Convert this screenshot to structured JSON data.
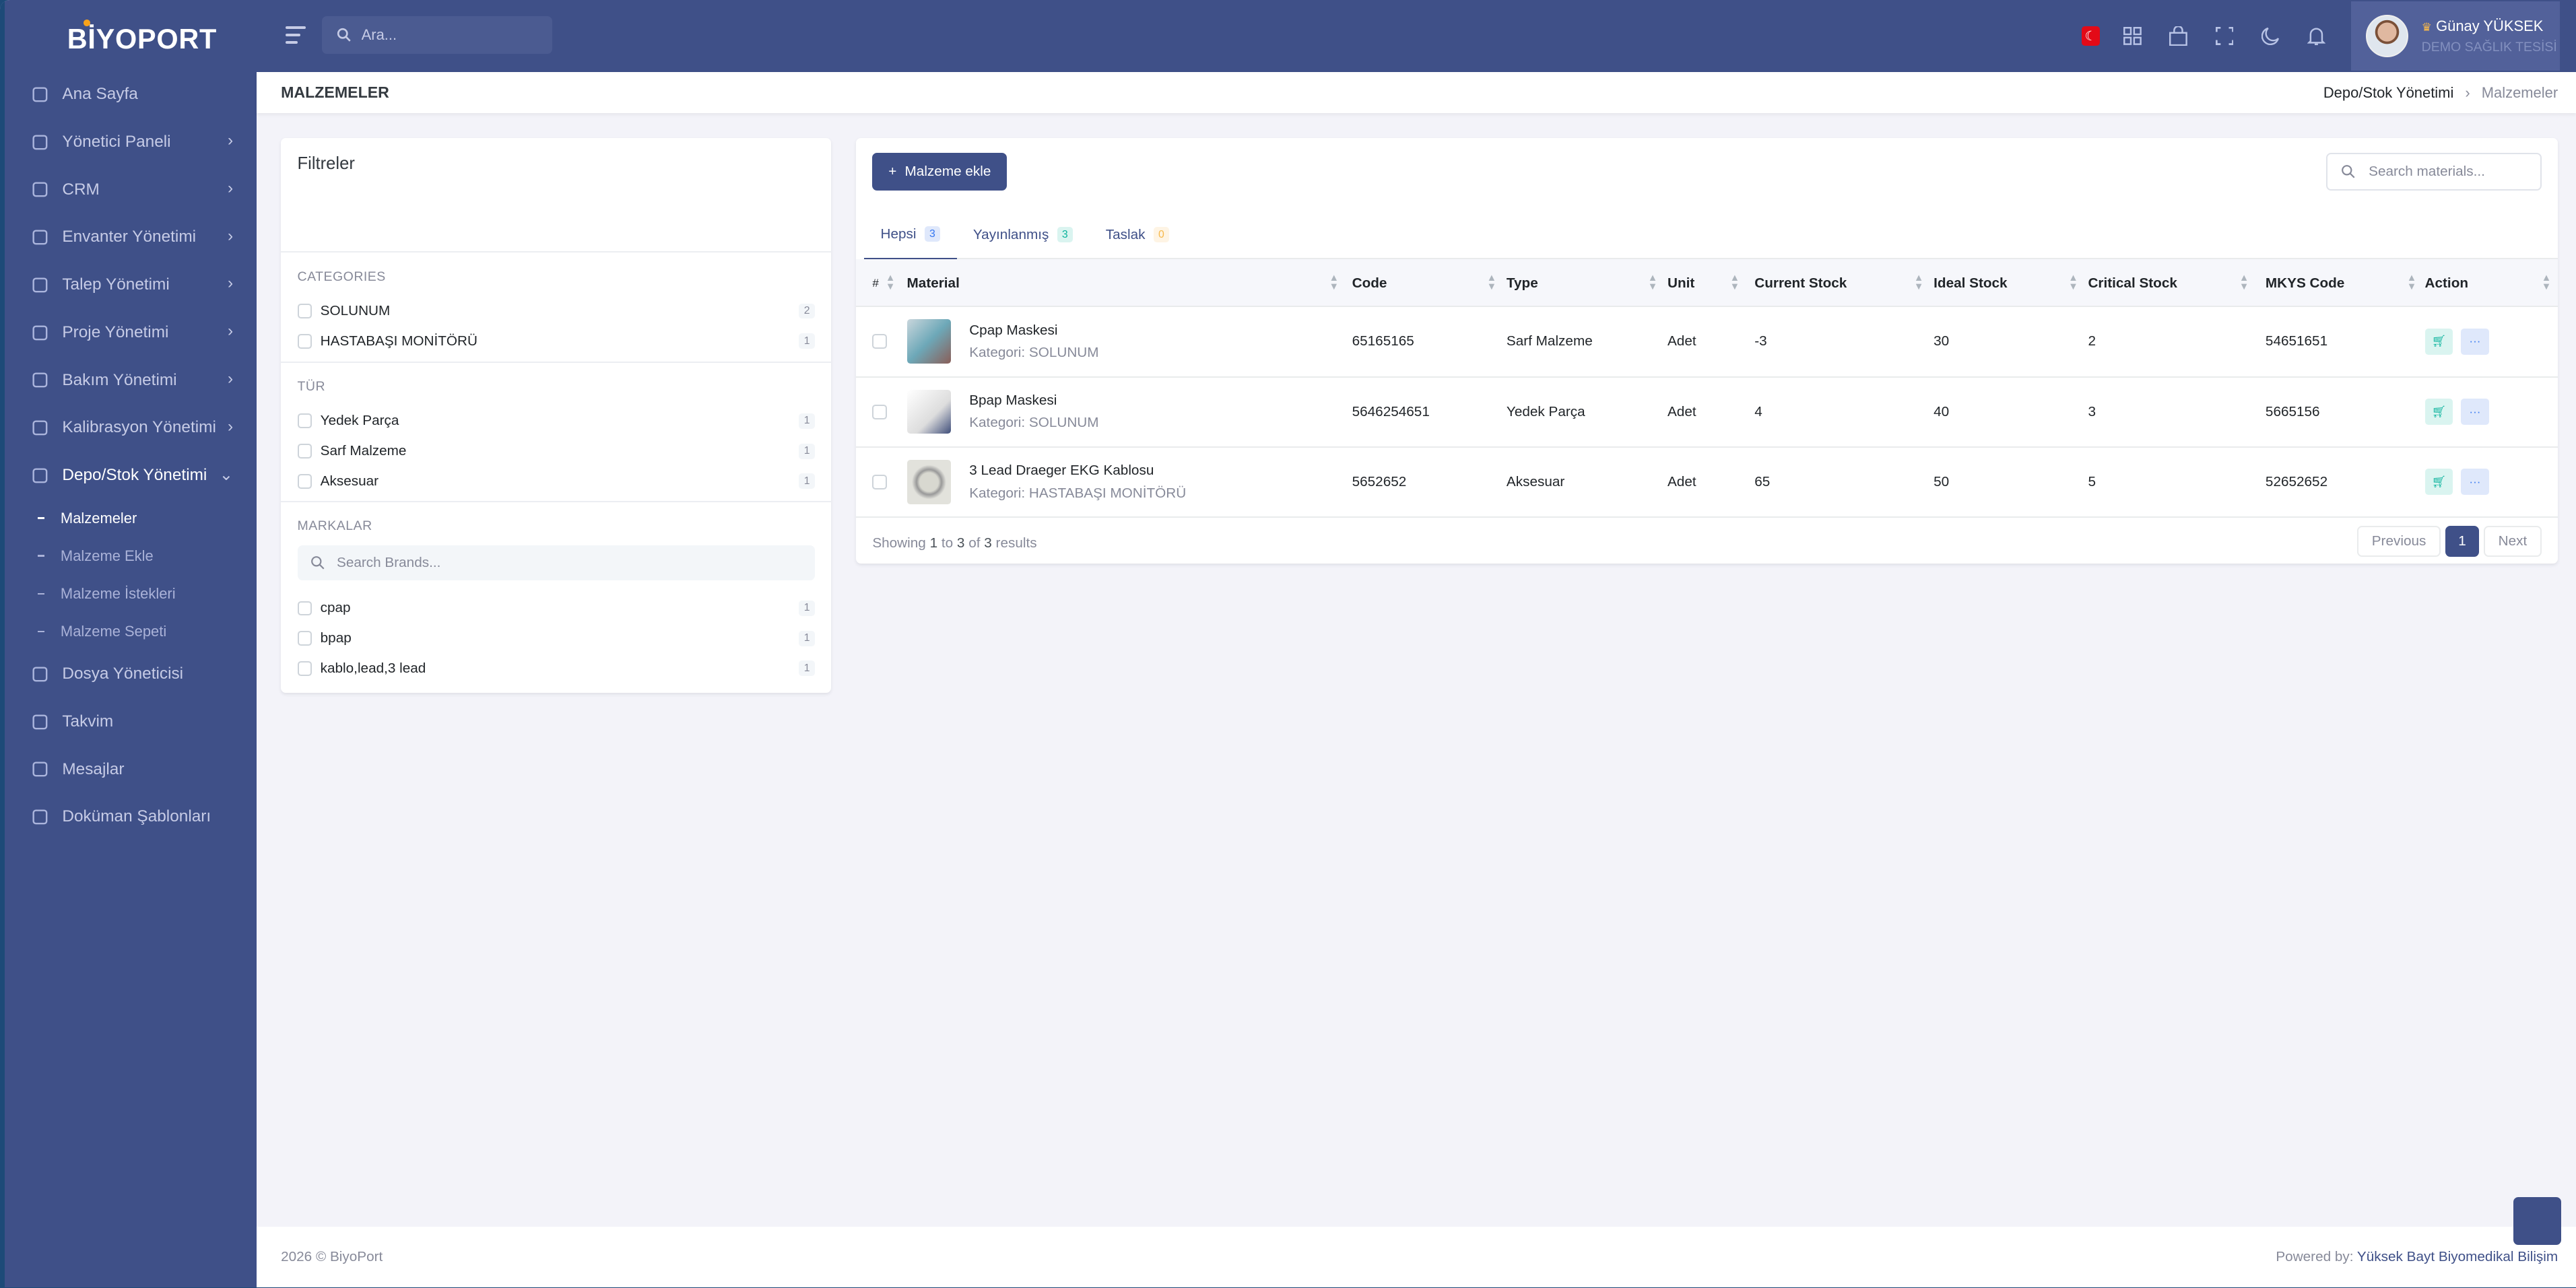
{
  "app": {
    "logo": "BİYOPORT"
  },
  "topbar": {
    "search_placeholder": "Ara...",
    "user_name": "Günay YÜKSEK",
    "user_org": "DEMO SAĞLIK TESİSİ"
  },
  "sidebar": {
    "items": [
      {
        "label": "Ana Sayfa",
        "icon": "home-icon",
        "chevron": false
      },
      {
        "label": "Yönetici Paneli",
        "icon": "user-lock-icon",
        "chevron": true
      },
      {
        "label": "CRM",
        "icon": "users-icon",
        "chevron": true
      },
      {
        "label": "Envanter Yönetimi",
        "icon": "database-icon",
        "chevron": true
      },
      {
        "label": "Talep Yönetimi",
        "icon": "checkbox-icon",
        "chevron": true
      },
      {
        "label": "Proje Yönetimi",
        "icon": "folder-icon",
        "chevron": true
      },
      {
        "label": "Bakım Yönetimi",
        "icon": "tools-icon",
        "chevron": true
      },
      {
        "label": "Kalibrasyon Yönetimi",
        "icon": "user-settings-icon",
        "chevron": true
      },
      {
        "label": "Depo/Stok Yönetimi",
        "icon": "archive-icon",
        "chevron": true,
        "expanded": true
      }
    ],
    "sub_items": [
      "Malzemeler",
      "Malzeme Ekle",
      "Malzeme İstekleri",
      "Malzeme Sepeti"
    ],
    "items_after": [
      {
        "label": "Dosya Yöneticisi",
        "icon": "folder-icon"
      },
      {
        "label": "Takvim",
        "icon": "calendar-icon"
      },
      {
        "label": "Mesajlar",
        "icon": "message-icon"
      },
      {
        "label": "Doküman Şablonları",
        "icon": "document-icon"
      }
    ]
  },
  "page": {
    "title": "MALZEMELER",
    "breadcrumb": [
      "Depo/Stok Yönetimi",
      "Malzemeler"
    ]
  },
  "filters": {
    "title": "Filtreler",
    "categories": {
      "heading": "CATEGORIES",
      "items": [
        {
          "label": "SOLUNUM",
          "count": "2"
        },
        {
          "label": "HASTABAŞI MONİTÖRÜ",
          "count": "1"
        }
      ]
    },
    "types": {
      "heading": "TÜR",
      "items": [
        {
          "label": "Yedek Parça",
          "count": "1"
        },
        {
          "label": "Sarf Malzeme",
          "count": "1"
        },
        {
          "label": "Aksesuar",
          "count": "1"
        }
      ]
    },
    "brands": {
      "heading": "MARKALAR",
      "search_placeholder": "Search Brands...",
      "items": [
        {
          "label": "cpap",
          "count": "1"
        },
        {
          "label": "bpap",
          "count": "1"
        },
        {
          "label": "kablo,lead,3 lead",
          "count": "1"
        }
      ]
    }
  },
  "main": {
    "add_button": "Malzeme ekle",
    "search_placeholder": "Search materials...",
    "tabs": [
      {
        "label": "Hepsi",
        "count": "3"
      },
      {
        "label": "Yayınlanmış",
        "count": "3"
      },
      {
        "label": "Taslak",
        "count": "0"
      }
    ],
    "columns": [
      "#",
      "Material",
      "Code",
      "Type",
      "Unit",
      "Current Stock",
      "Ideal Stock",
      "Critical Stock",
      "MKYS Code",
      "Action"
    ],
    "rows": [
      {
        "name": "Cpap Maskesi",
        "category": "Kategori: SOLUNUM",
        "code": "65165165",
        "type": "Sarf Malzeme",
        "unit": "Adet",
        "current": "-3",
        "ideal": "30",
        "critical": "2",
        "mkys": "54651651"
      },
      {
        "name": "Bpap Maskesi",
        "category": "Kategori: SOLUNUM",
        "code": "5646254651",
        "type": "Yedek Parça",
        "unit": "Adet",
        "current": "4",
        "ideal": "40",
        "critical": "3",
        "mkys": "5665156"
      },
      {
        "name": "3 Lead Draeger EKG Kablosu",
        "category": "Kategori: HASTABAŞI MONİTÖRÜ",
        "code": "5652652",
        "type": "Aksesuar",
        "unit": "Adet",
        "current": "65",
        "ideal": "50",
        "critical": "5",
        "mkys": "52652652"
      }
    ],
    "showing": {
      "prefix": "Showing",
      "from": "1",
      "to_word": "to",
      "to": "3",
      "of_word": "of",
      "total": "3",
      "suffix": "results"
    },
    "pagination": {
      "previous": "Previous",
      "current": "1",
      "next": "Next"
    }
  },
  "footer": {
    "copyright": "2026 © BiyoPort",
    "powered_prefix": "Powered by:",
    "powered_brand": "Yüksek Bayt Biyomedikal Bilişim"
  },
  "colors": {
    "primary": "#3f5088",
    "success": "#0ab39c",
    "info": "#3577f1",
    "warning": "#f7b84b"
  }
}
